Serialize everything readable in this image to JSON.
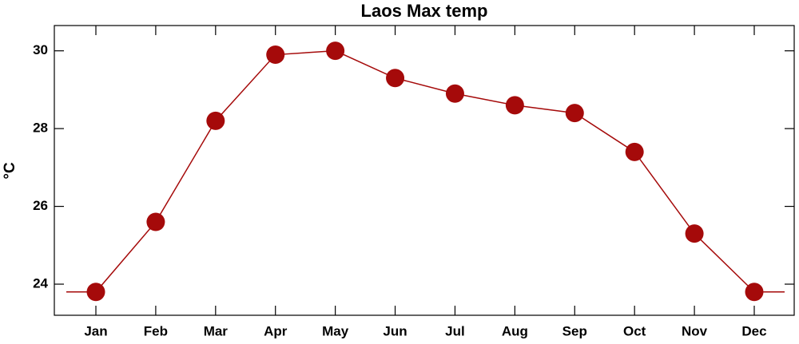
{
  "chart_data": {
    "type": "line",
    "title": "Laos Max temp",
    "y_label": "°C",
    "categories": [
      "Jan",
      "Feb",
      "Mar",
      "Apr",
      "May",
      "Jun",
      "Jul",
      "Aug",
      "Sep",
      "Oct",
      "Nov",
      "Dec"
    ],
    "values": [
      23.8,
      25.6,
      28.2,
      29.9,
      30.0,
      29.3,
      28.9,
      28.6,
      28.4,
      27.4,
      25.3,
      23.8
    ],
    "color": "#a50a0a",
    "ylim": [
      23.2,
      30.65
    ],
    "yticks": [
      24,
      26,
      28,
      30
    ],
    "grid": false
  }
}
